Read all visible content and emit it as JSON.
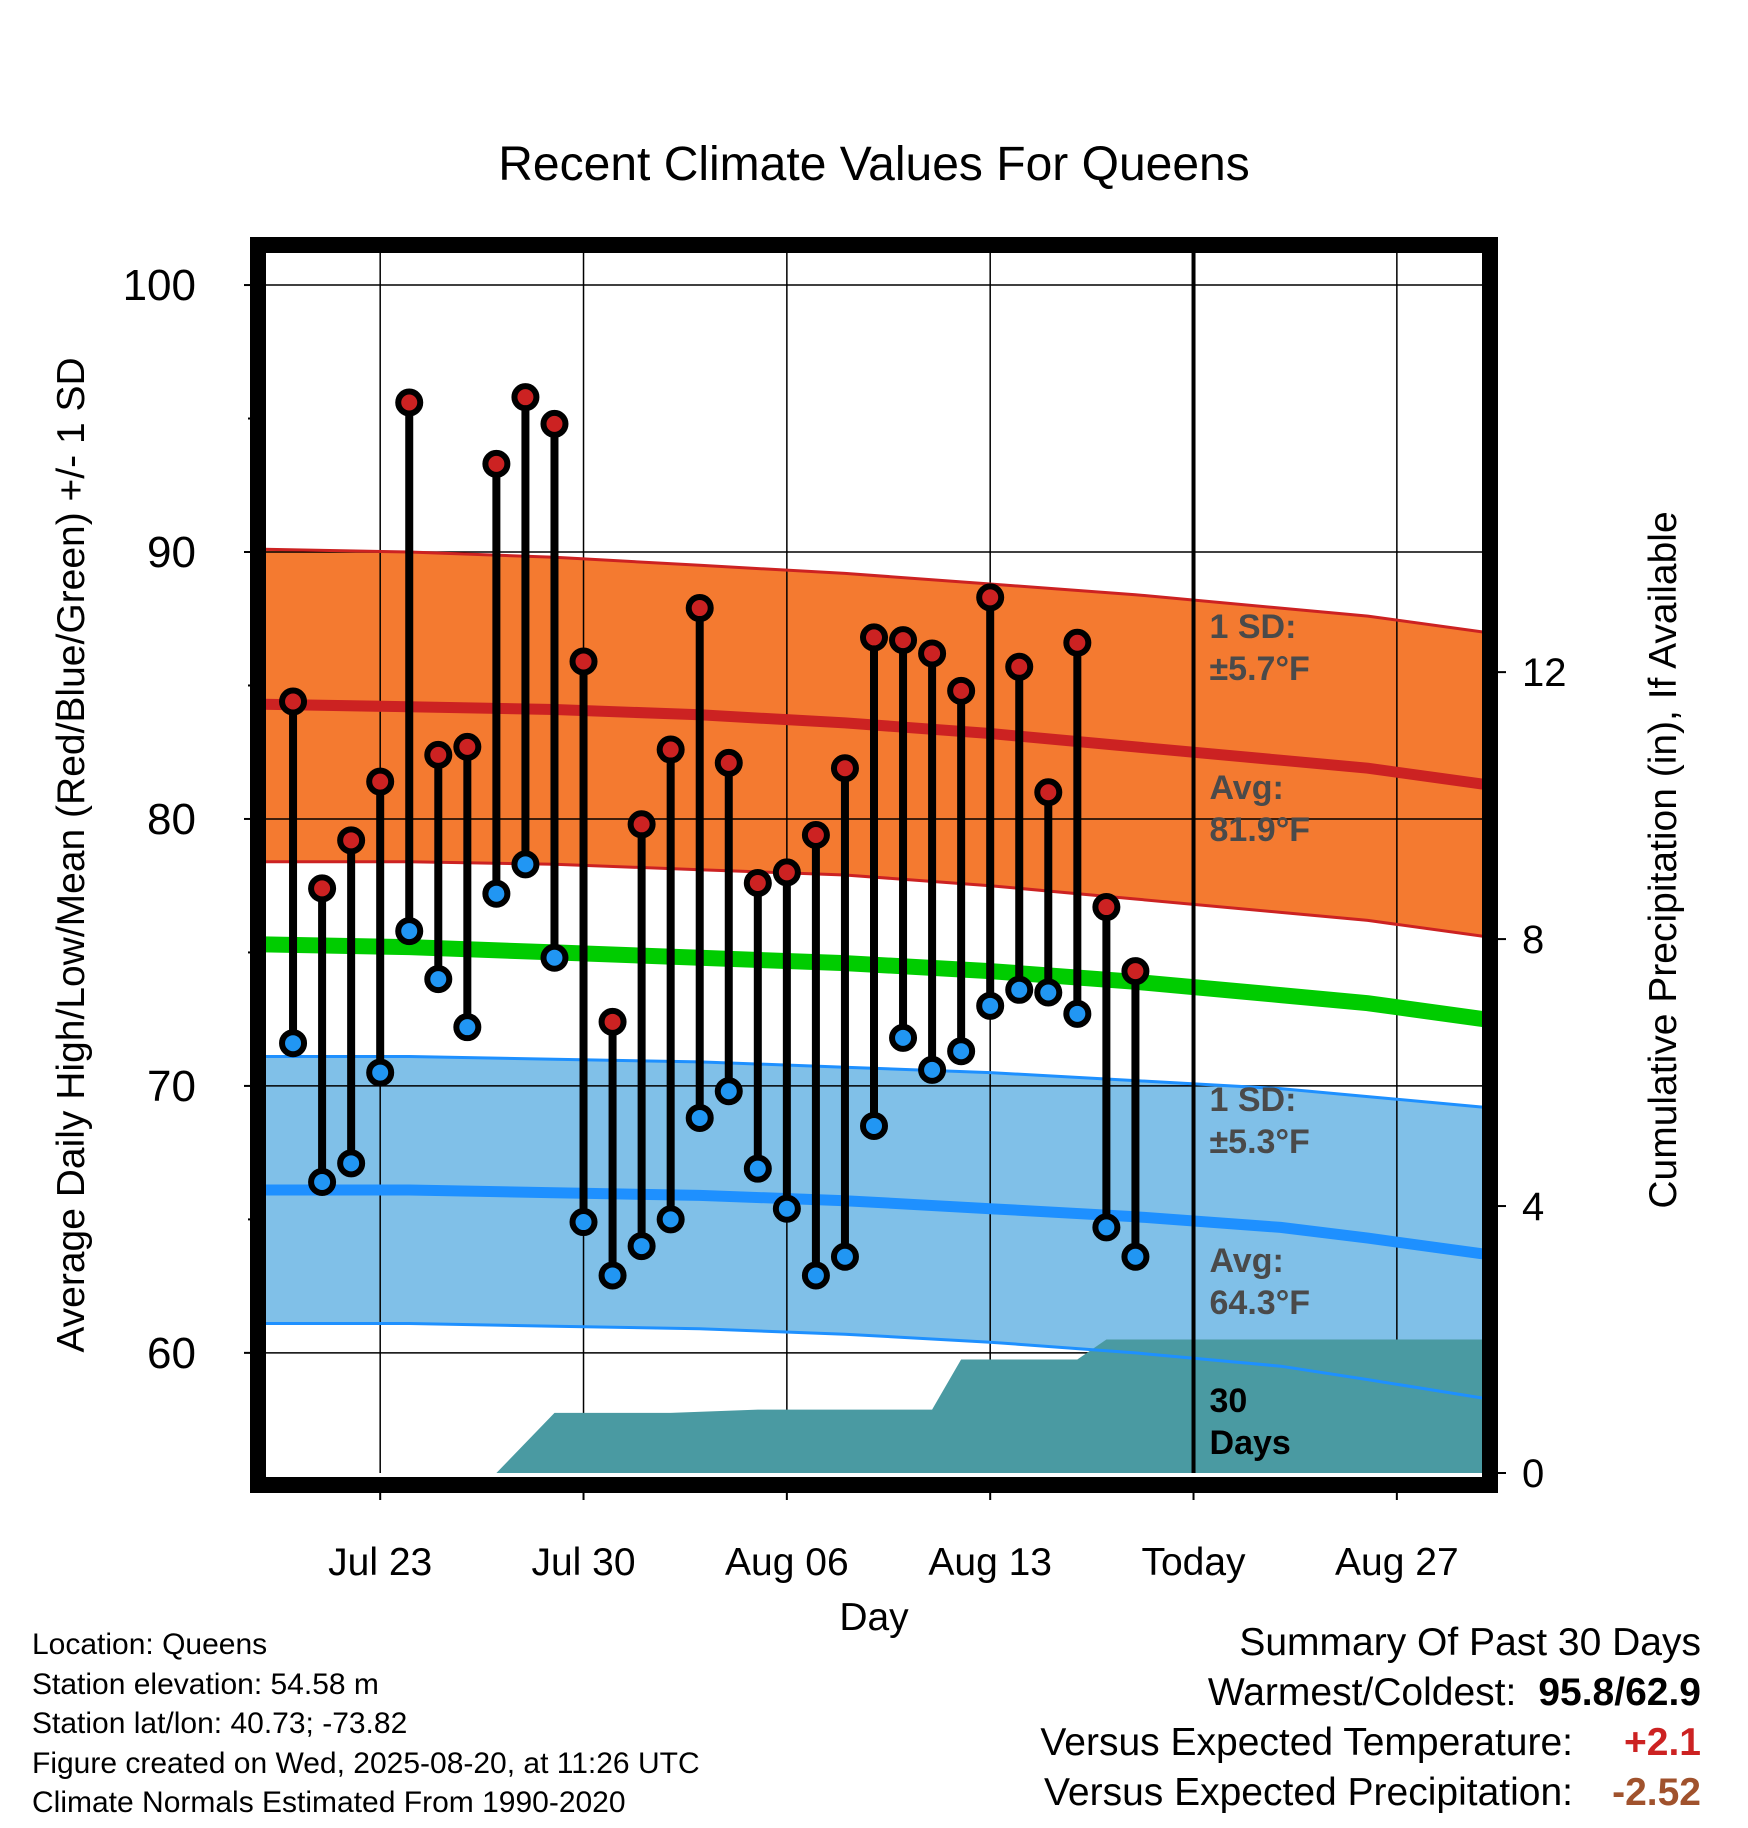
{
  "chart_data": {
    "type": "scatter",
    "title": "Recent Climate Values For Queens",
    "xlabel": "Day",
    "ylabel": "Average Daily High/Low/Mean (Red/Blue/Green) +/- 1 SD",
    "y2label": "Cumulative Precipitation (in), If Available",
    "ylim": [
      55.5,
      101.5
    ],
    "y2lim": [
      0,
      18.4
    ],
    "xlim": [
      "Jul 19",
      "Aug 30"
    ],
    "x_ticks": [
      "Jul 23",
      "Jul 30",
      "Aug 06",
      "Aug 13",
      "Today",
      "Aug 27"
    ],
    "y_ticks": [
      "60",
      "70",
      "80",
      "90",
      "100"
    ],
    "y2_ticks": [
      "0",
      "4",
      "8",
      "12"
    ],
    "grid": true,
    "today_date": "Aug 20",
    "dates": [
      "Jul 20",
      "Jul 21",
      "Jul 22",
      "Jul 23",
      "Jul 24",
      "Jul 25",
      "Jul 26",
      "Jul 27",
      "Jul 28",
      "Jul 29",
      "Jul 30",
      "Jul 31",
      "Aug 01",
      "Aug 02",
      "Aug 03",
      "Aug 04",
      "Aug 05",
      "Aug 06",
      "Aug 07",
      "Aug 08",
      "Aug 09",
      "Aug 10",
      "Aug 11",
      "Aug 12",
      "Aug 13",
      "Aug 14",
      "Aug 15",
      "Aug 16",
      "Aug 17",
      "Aug 18",
      "Aug 19"
    ],
    "series": [
      {
        "name": "High",
        "color": "#cc2222",
        "values": [
          84.4,
          77.4,
          79.2,
          81.4,
          95.6,
          82.4,
          82.7,
          93.3,
          95.8,
          94.8,
          85.9,
          72.4,
          79.8,
          82.6,
          87.9,
          82.1,
          77.6,
          78.0,
          79.4,
          81.9,
          86.8,
          86.7,
          86.2,
          84.8,
          88.3,
          85.7,
          81.0,
          86.6,
          76.7,
          74.3,
          null
        ]
      },
      {
        "name": "Low",
        "color": "#2196f3",
        "values": [
          71.6,
          66.4,
          67.1,
          70.5,
          75.8,
          74.0,
          72.2,
          77.2,
          78.3,
          74.8,
          64.9,
          62.9,
          64.0,
          65.0,
          68.8,
          69.8,
          66.9,
          65.4,
          62.9,
          63.6,
          68.5,
          71.8,
          70.6,
          71.3,
          73.0,
          73.6,
          73.5,
          72.7,
          64.7,
          63.6,
          null
        ]
      }
    ],
    "normals": {
      "high_avg": [
        84.3,
        84.2,
        84.1,
        83.9,
        83.6,
        83.2,
        82.7,
        82.2,
        81.9,
        81.3,
        80.3
      ],
      "high_sd_upper": [
        90.1,
        90.0,
        89.8,
        89.5,
        89.2,
        88.8,
        88.4,
        87.9,
        87.6,
        87.0,
        86.1
      ],
      "high_sd_lower": [
        78.4,
        78.4,
        78.3,
        78.1,
        77.9,
        77.5,
        77.0,
        76.5,
        76.2,
        75.6,
        74.6
      ],
      "mean_avg": [
        75.3,
        75.2,
        75.0,
        74.8,
        74.6,
        74.3,
        73.9,
        73.4,
        73.1,
        72.5,
        71.5
      ],
      "low_avg": [
        66.1,
        66.1,
        66.0,
        65.9,
        65.7,
        65.4,
        65.1,
        64.7,
        64.3,
        63.7,
        62.6
      ],
      "low_sd_upper": [
        71.1,
        71.1,
        71.0,
        70.9,
        70.7,
        70.5,
        70.2,
        69.9,
        69.6,
        69.2,
        68.4
      ],
      "low_sd_lower": [
        61.1,
        61.1,
        61.0,
        60.9,
        60.7,
        60.4,
        60.0,
        59.5,
        59.0,
        58.3,
        57.5
      ],
      "days_from_start": [
        0,
        5,
        10,
        15,
        20,
        25,
        30,
        35,
        38,
        42,
        47
      ]
    },
    "precip_cumulative": {
      "dates": [
        "Jul 27",
        "Jul 29",
        "Aug 02",
        "Aug 05",
        "Aug 11",
        "Aug 12",
        "Aug 16",
        "Aug 17",
        "Aug 30"
      ],
      "values": [
        0,
        0.9,
        0.9,
        0.95,
        0.95,
        1.7,
        1.7,
        2.0,
        2.0
      ],
      "color": "#4a9aa2"
    },
    "annotations": {
      "high_sd": [
        "1 SD:",
        "±5.7°F"
      ],
      "high_avg": [
        "Avg:",
        "81.9°F"
      ],
      "low_sd": [
        "1 SD:",
        "±5.3°F"
      ],
      "low_avg": [
        "Avg:",
        "64.3°F"
      ],
      "precip_days": [
        "30",
        "Days"
      ]
    },
    "colors": {
      "high_band": "#f47a30",
      "high_line": "#cc2222",
      "mean_line": "#00cc00",
      "low_band": "#80c0e8",
      "low_line": "#1e90ff",
      "marker_today": "#555555"
    }
  },
  "info": {
    "location": "Location: Queens",
    "elevation": "Station elevation: 54.58 m",
    "latlon": "Station lat/lon: 40.73; -73.82",
    "created": "Figure created on Wed, 2025-08-20, at 11:26 UTC",
    "normals": "Climate Normals Estimated From 1990-2020"
  },
  "summary": {
    "title": "Summary Of Past 30 Days",
    "warmest_label": "Warmest/Coldest:",
    "warmest_value": "95.8/62.9",
    "temp_label": "Versus Expected Temperature:",
    "temp_value": "+2.1",
    "precip_label": "Versus Expected Precipitation:",
    "precip_value": "-2.52"
  }
}
